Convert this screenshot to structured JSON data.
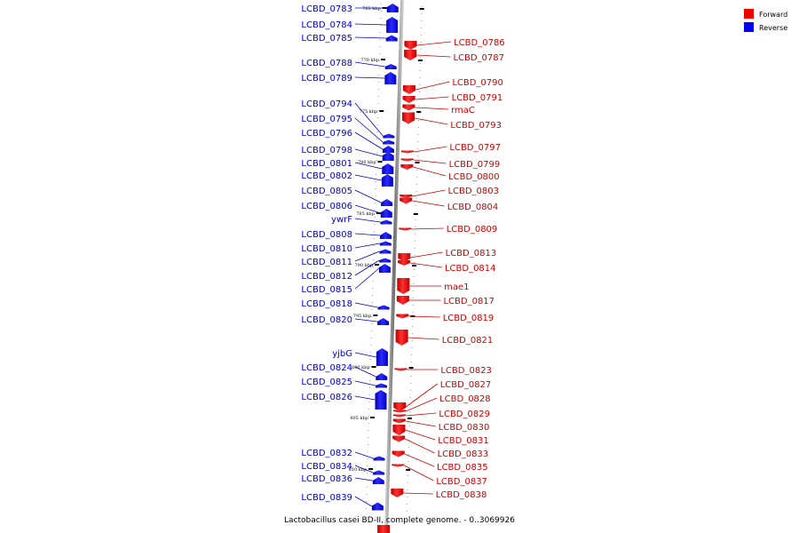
{
  "legend": {
    "forward": {
      "label": "Forward",
      "color": "#ee0000"
    },
    "reverse": {
      "label": "Reverse",
      "color": "#0000ee"
    }
  },
  "caption": "Lactobacillus casei BD-II, complete genome. - 0..3069926",
  "ticks": [
    "765 kbp",
    "770 kbp",
    "775 kbp",
    "780 kbp",
    "785 kbp",
    "790 kbp",
    "795 kbp",
    "800 kbp",
    "805 kbp",
    "810 kbp"
  ],
  "reverse_genes": [
    "LCBD_0783",
    "LCBD_0784",
    "LCBD_0785",
    "LCBD_0788",
    "LCBD_0789",
    "LCBD_0794",
    "LCBD_0795",
    "LCBD_0796",
    "LCBD_0798",
    "LCBD_0801",
    "LCBD_0802",
    "LCBD_0805",
    "LCBD_0806",
    "ywrF",
    "LCBD_0808",
    "LCBD_0810",
    "LCBD_0811",
    "LCBD_0812",
    "LCBD_0815",
    "LCBD_0818",
    "LCBD_0820",
    "yjbG",
    "LCBD_0824",
    "LCBD_0825",
    "LCBD_0826",
    "LCBD_0832",
    "LCBD_0834",
    "LCBD_0836",
    "LCBD_0839"
  ],
  "forward_genes": [
    "LCBD_0786",
    "LCBD_0787",
    "LCBD_0790",
    "LCBD_0791",
    "rmaC",
    "LCBD_0793",
    "LCBD_0797",
    "LCBD_0799",
    "LCBD_0800",
    "LCBD_0803",
    "LCBD_0804",
    "LCBD_0809",
    "LCBD_0813",
    "LCBD_0814",
    "mae1",
    "LCBD_0817",
    "LCBD_0819",
    "LCBD_0821",
    "LCBD_0823",
    "LCBD_0827",
    "LCBD_0828",
    "LCBD_0829",
    "LCBD_0830",
    "LCBD_0831",
    "LCBD_0833",
    "LCBD_0835",
    "LCBD_0837",
    "LCBD_0838"
  ]
}
